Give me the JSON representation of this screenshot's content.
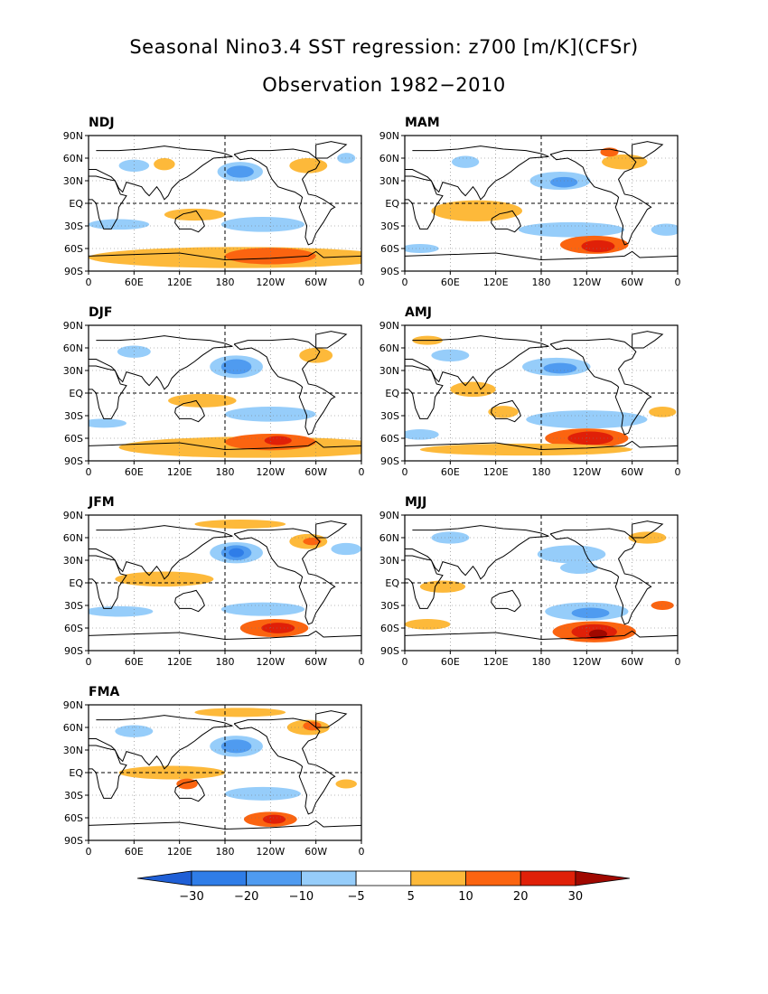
{
  "title": {
    "line1": "Seasonal Nino3.4 SST regression: z700 [m/K](CFSr)",
    "line2": "Observation 1982−2010"
  },
  "axes": {
    "lat_labels": [
      "90N",
      "60N",
      "30N",
      "EQ",
      "30S",
      "60S",
      "90S"
    ],
    "lon_labels": [
      "0",
      "60E",
      "120E",
      "180",
      "120W",
      "60W",
      "0"
    ],
    "lat_range": [
      -90,
      90
    ],
    "lon_range": [
      0,
      360
    ]
  },
  "panels": [
    {
      "label": "NDJ"
    },
    {
      "label": "MAM"
    },
    {
      "label": "DJF"
    },
    {
      "label": "AMJ"
    },
    {
      "label": "JFM"
    },
    {
      "label": "MJJ"
    },
    {
      "label": "FMA"
    }
  ],
  "colors": {
    "neg_extreme": "#1f5fd6",
    "neg30": "#2f7de8",
    "neg20": "#4f9bf0",
    "neg10": "#96cdfa",
    "zero": "#ffffff",
    "pos5": "#fdb93a",
    "pos10": "#fb6410",
    "pos20": "#e02008",
    "pos_extreme": "#a00800"
  },
  "colorbar": {
    "labels": [
      "−30",
      "−20",
      "−10",
      "−5",
      "5",
      "10",
      "20",
      "30"
    ]
  }
}
